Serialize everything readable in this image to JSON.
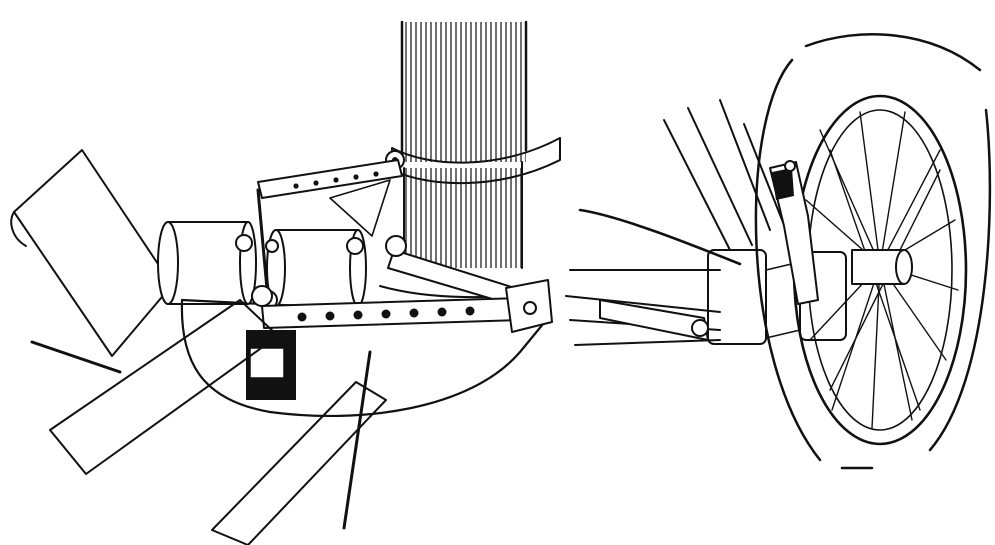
{
  "image": {
    "kind": "engraving",
    "panels": [
      "left-panel",
      "right-panel"
    ],
    "ink_color": "#111111",
    "paper_color": "#ffffff"
  }
}
